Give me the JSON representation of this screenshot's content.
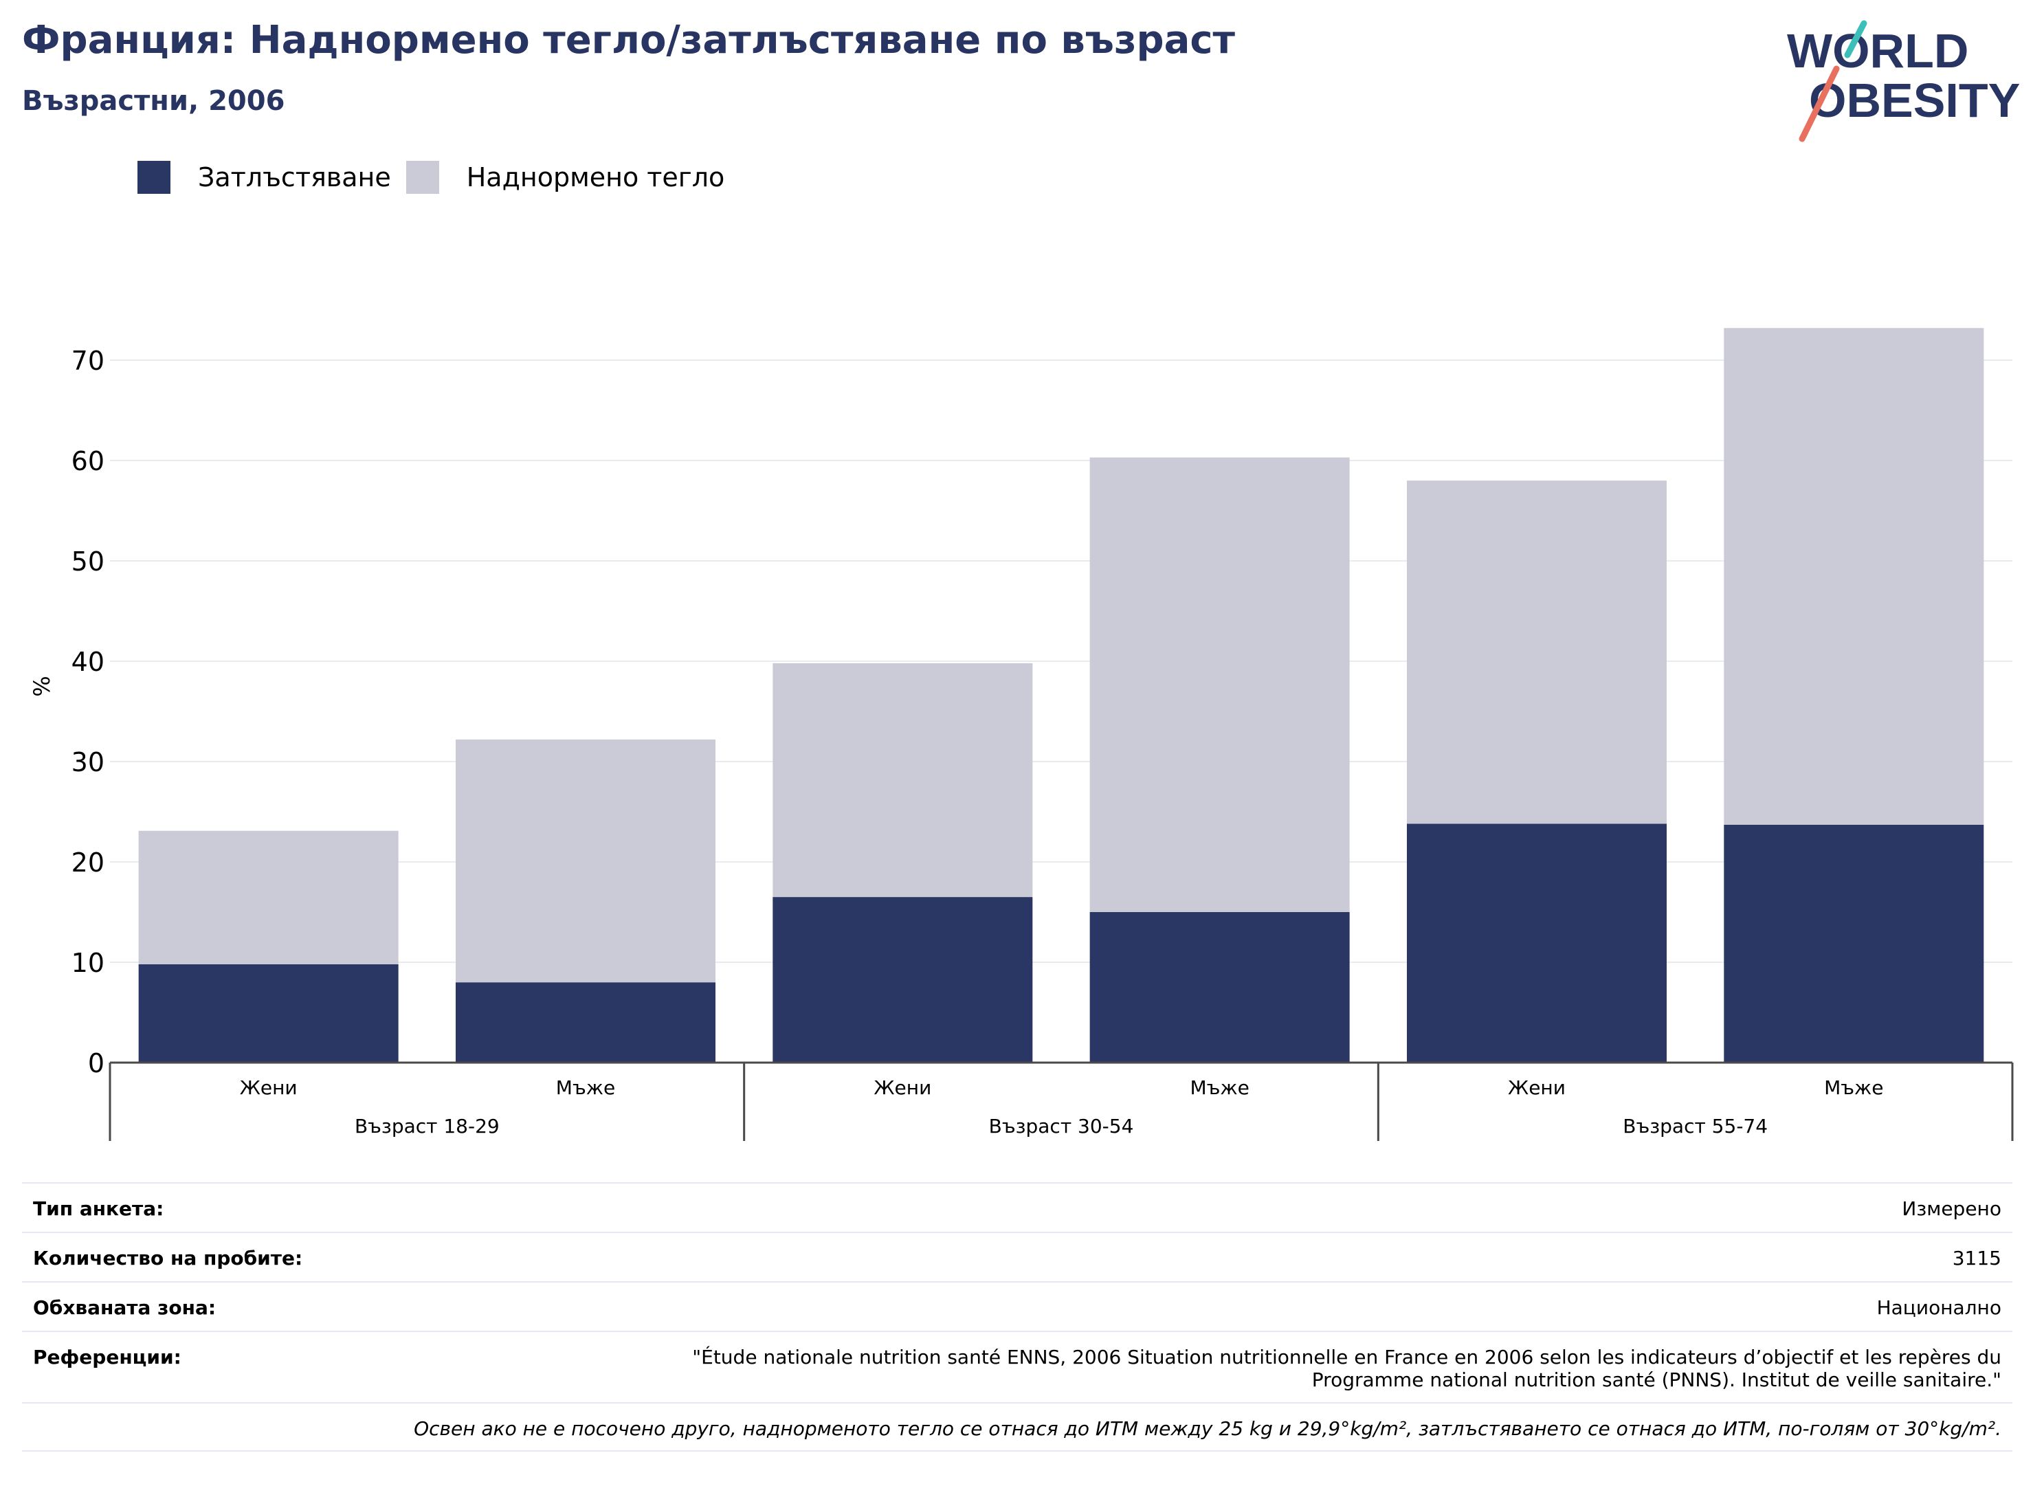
{
  "header": {
    "title": "Франция: Наднормено тегло/затлъстяване по възраст",
    "subtitle": "Възрастни, 2006"
  },
  "logo": {
    "line1": "WORLD",
    "line2": "OBESITY",
    "colors": {
      "text": "#283462",
      "slash_top": "#3bbfb8",
      "slash_bottom": "#e8705f"
    }
  },
  "legend": [
    {
      "label": "Затлъстяване",
      "color": "#2a3663"
    },
    {
      "label": "Наднормено тегло",
      "color": "#cacbd7"
    }
  ],
  "chart_data": {
    "type": "bar",
    "stacked": true,
    "ylabel": "%",
    "ylim": [
      0,
      75
    ],
    "yticks": [
      0,
      10,
      20,
      30,
      40,
      50,
      60,
      70
    ],
    "grid": true,
    "groups": [
      {
        "label": "Възраст 18-29",
        "categories": [
          "Жени",
          "Мъже"
        ]
      },
      {
        "label": "Възраст 30-54",
        "categories": [
          "Жени",
          "Мъже"
        ]
      },
      {
        "label": "Възраст 55-74",
        "categories": [
          "Жени",
          "Мъже"
        ]
      }
    ],
    "series": [
      {
        "name": "Затлъстяване",
        "color": "#2a3663",
        "values": [
          9.8,
          8.0,
          16.5,
          15.0,
          23.8,
          23.7
        ]
      },
      {
        "name": "Наднормено тегло",
        "color": "#cacbd7",
        "values": [
          13.3,
          24.2,
          23.3,
          45.3,
          34.2,
          49.5
        ]
      }
    ]
  },
  "meta": {
    "survey_type_label": "Тип анкета:",
    "survey_type_value": "Измерено",
    "sample_size_label": "Количество на пробите:",
    "sample_size_value": "3115",
    "area_label": "Обхваната зона:",
    "area_value": "Национално",
    "references_label": "Референции:",
    "references_line1": "\"Étude nationale nutrition santé ENNS, 2006 Situation nutritionnelle en France en 2006 selon les indicateurs d’objectif et les repères du",
    "references_line2": "Programme national nutrition santé (PNNS). Institut de veille sanitaire.\"",
    "note": "Освен ако не е посочено друго, наднорменото тегло се отнася до ИТМ между 25 kg и 29,9°kg/m², затлъстяването се отнася до ИТМ, по-голям от 30°kg/m²."
  }
}
